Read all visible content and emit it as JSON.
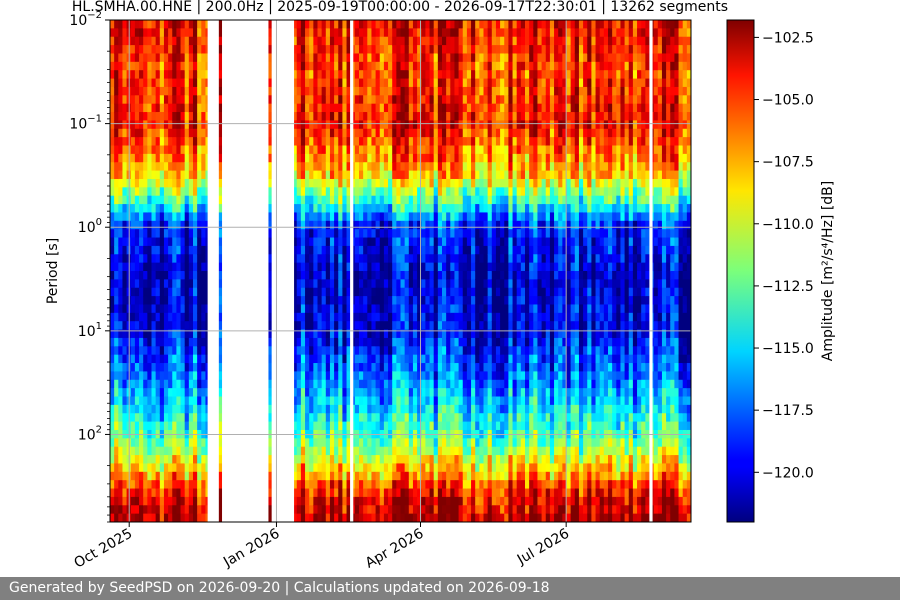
{
  "chart_data": {
    "type": "heatmap",
    "title": "HL.SMHA.00.HNE | 200.0Hz | 2025-09-19T00:00:00 - 2026-09-17T22:30:01 | 13262 segments",
    "ylabel": "Period [s]",
    "colorbar_label": "Amplitude [m²/s⁴/Hz] [dB]",
    "x_range": [
      "2025-09-19",
      "2026-09-17"
    ],
    "x_ticks": [
      {
        "date": "2025-10-01",
        "label": "Oct 2025"
      },
      {
        "date": "2026-01-01",
        "label": "Jan 2026"
      },
      {
        "date": "2026-04-01",
        "label": "Apr 2026"
      },
      {
        "date": "2026-07-01",
        "label": "Jul 2026"
      }
    ],
    "y_scale": "log",
    "y_range": [
      0.01,
      700
    ],
    "y_inverted": true,
    "y_ticks": [
      {
        "value": 0.01,
        "base": "10",
        "exp": "−2"
      },
      {
        "value": 0.1,
        "base": "10",
        "exp": "−1"
      },
      {
        "value": 1,
        "base": "10",
        "exp": "0"
      },
      {
        "value": 10,
        "base": "10",
        "exp": "1"
      },
      {
        "value": 100,
        "base": "10",
        "exp": "2"
      }
    ],
    "colorbar_range": [
      -122,
      -101.8
    ],
    "colorbar_ticks": [
      "−102.5",
      "−105.0",
      "−107.5",
      "−110.0",
      "−112.5",
      "−115.0",
      "−117.5",
      "−120.0"
    ],
    "colorbar_tick_values": [
      -102.5,
      -105.0,
      -107.5,
      -110.0,
      -112.5,
      -115.0,
      -117.5,
      -120.0
    ],
    "colormap": "jet",
    "data_gaps": [
      [
        "2025-11-19",
        "2025-11-26"
      ],
      [
        "2025-11-28",
        "2025-12-27"
      ],
      [
        "2025-12-29",
        "2026-01-12"
      ],
      [
        "2026-02-16",
        "2026-02-18"
      ],
      [
        "2026-08-22",
        "2026-08-24"
      ]
    ],
    "grid": true,
    "profile": [
      {
        "period": 0.01,
        "db": -104
      },
      {
        "period": 0.03,
        "db": -105.5
      },
      {
        "period": 0.1,
        "db": -104.5
      },
      {
        "period": 0.3,
        "db": -108
      },
      {
        "period": 0.6,
        "db": -114
      },
      {
        "period": 1,
        "db": -119
      },
      {
        "period": 3,
        "db": -120.5
      },
      {
        "period": 10,
        "db": -120
      },
      {
        "period": 30,
        "db": -117
      },
      {
        "period": 100,
        "db": -113
      },
      {
        "period": 200,
        "db": -109
      },
      {
        "period": 400,
        "db": -104
      },
      {
        "period": 700,
        "db": -102.5
      }
    ]
  },
  "footer": {
    "text": "Generated by SeedPSD on 2026-09-20 | Calculations updated on 2026-09-18"
  },
  "colors": {
    "gridline": "#b0b0b0",
    "footer_bg": "#808080",
    "footer_text": "#ffffff"
  }
}
